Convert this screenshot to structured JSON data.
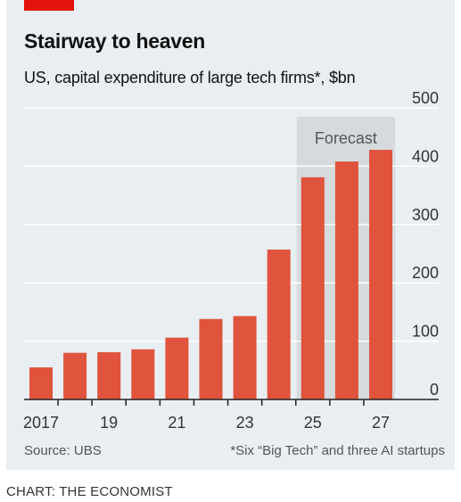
{
  "header": {
    "title": "Stairway to heaven",
    "subtitle": "US, capital expenditure of large tech firms*, $bn"
  },
  "footer": {
    "source": "Source: UBS",
    "footnote": "*Six “Big Tech” and three AI startups",
    "credit": "CHART: THE ECONOMIST"
  },
  "colors": {
    "bar": "#e0533d",
    "panel": "#e9eef2",
    "forecast_band": "#d6dadd",
    "grid": "#ffffff",
    "axis": "#222222",
    "brand_tag": "#e3120b"
  },
  "chart_data": {
    "type": "bar",
    "title": "Stairway to heaven",
    "subtitle": "US, capital expenditure of large tech firms*, $bn",
    "x": [
      2017,
      2018,
      2019,
      2020,
      2021,
      2022,
      2023,
      2024,
      2025,
      2026,
      2027
    ],
    "x_tick_labels": [
      "2017",
      "",
      "19",
      "",
      "21",
      "",
      "23",
      "",
      "25",
      "",
      "27"
    ],
    "values": [
      55,
      80,
      81,
      86,
      106,
      138,
      143,
      257,
      381,
      408,
      428
    ],
    "ylim": [
      0,
      500
    ],
    "y_ticks": [
      0,
      100,
      200,
      300,
      400,
      500
    ],
    "y_axis_side": "right",
    "grid": true,
    "forecast": {
      "label": "Forecast",
      "from": 2025,
      "to": 2027
    }
  }
}
